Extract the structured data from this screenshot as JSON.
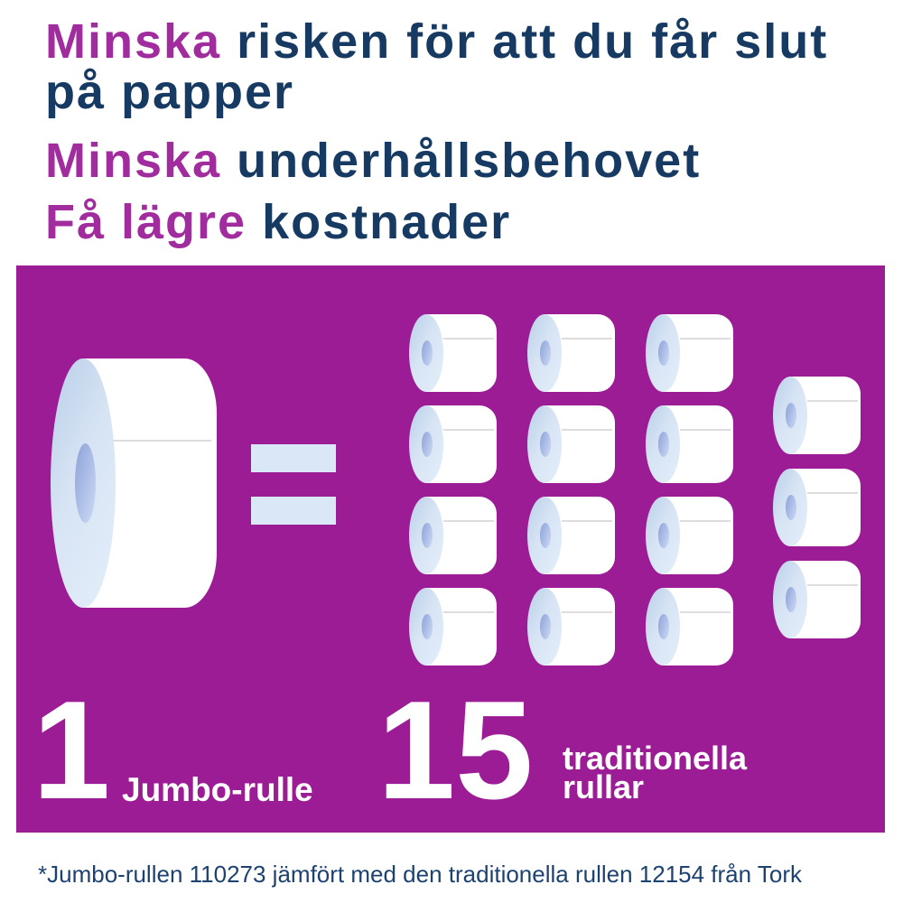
{
  "colors": {
    "accent_magenta": "#a12c9e",
    "headline_navy": "#173a63",
    "box_purple": "#9c1c96",
    "footnote_navy": "#1d4270",
    "roll_face_blue": "#d7e4f4",
    "roll_core_blue": "#9dafe0",
    "equals_blue": "#d9e7f6",
    "count_white": "#ffffff"
  },
  "headline": {
    "lines": [
      {
        "accent": "Minska ",
        "rest": "risken för att du får slut"
      },
      {
        "accent": "",
        "rest": "på papper"
      },
      {
        "accent": "Minska ",
        "rest": "underhållsbehovet"
      },
      {
        "accent": "Få lägre ",
        "rest": "kostnader"
      }
    ]
  },
  "comparison": {
    "jumbo": {
      "count": "1",
      "label": "Jumbo-rulle"
    },
    "traditional": {
      "count": "15",
      "label": "traditionella\nrullar"
    },
    "equals_icon": "equals-icon",
    "jumbo_roll_count": 1,
    "small_roll_count": 15
  },
  "footnote": "*Jumbo-rullen 110273 jämfört med den traditionella rullen 12154 från Tork"
}
